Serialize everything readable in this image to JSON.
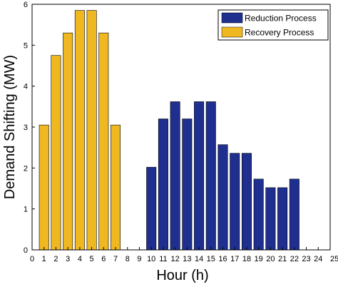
{
  "chart_data": {
    "type": "bar",
    "title": "",
    "xlabel": "Hour (h)",
    "ylabel": "Demand Shifting (MW)",
    "xlim": [
      0,
      25
    ],
    "ylim": [
      0,
      6
    ],
    "x_ticks": [
      "0",
      "1",
      "2",
      "3",
      "4",
      "5",
      "6",
      "7",
      "8",
      "9",
      "10",
      "11",
      "12",
      "13",
      "14",
      "15",
      "16",
      "17",
      "18",
      "19",
      "20",
      "21",
      "22",
      "23",
      "24",
      "25"
    ],
    "y_ticks": [
      "0",
      "1",
      "2",
      "3",
      "4",
      "5",
      "6"
    ],
    "legend_position": "top-right",
    "grid": false,
    "series": [
      {
        "name": "Reduction Process",
        "color": "#1f2f8f",
        "x": [
          10,
          11,
          12,
          13,
          14,
          15,
          16,
          17,
          18,
          19,
          20,
          21,
          22
        ],
        "values": [
          2.02,
          3.2,
          3.62,
          3.2,
          3.62,
          3.62,
          2.57,
          2.36,
          2.36,
          1.73,
          1.52,
          1.52,
          1.73
        ]
      },
      {
        "name": "Recovery Process",
        "color": "#efb820",
        "x": [
          1,
          2,
          3,
          4,
          5,
          6,
          7
        ],
        "values": [
          3.05,
          4.75,
          5.3,
          5.85,
          5.85,
          5.3,
          3.05
        ]
      }
    ]
  }
}
